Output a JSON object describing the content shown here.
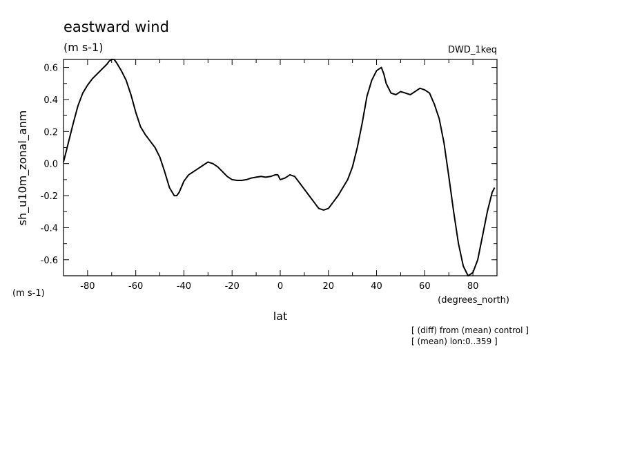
{
  "chart_data": {
    "type": "line",
    "title": "eastward wind",
    "subtitle": "(m s-1)",
    "dataset_label": "DWD_1keq",
    "ylabel": "sh_u10m_zonal_anm",
    "yunits": "(m s-1)",
    "xlabel": "lat",
    "xunits": "(degrees_north)",
    "xlim": [
      -90,
      90
    ],
    "ylim": [
      -0.7,
      0.65
    ],
    "xticks": [
      -80,
      -60,
      -40,
      -20,
      0,
      20,
      40,
      60,
      80
    ],
    "xtick_labels": [
      "-80",
      "-60",
      "-40",
      "-20",
      "0",
      "20",
      "40",
      "60",
      "80"
    ],
    "yticks": [
      -0.6,
      -0.4,
      -0.2,
      0.0,
      0.2,
      0.4,
      0.6
    ],
    "ytick_labels": [
      "-0.6",
      "-0.4",
      "-0.2",
      "0.0",
      "0.2",
      "0.4",
      "0.6"
    ],
    "grid": false,
    "notes": [
      "[ (diff) from (mean) control ]",
      "[ (mean) lon:0..359 ]"
    ],
    "series": [
      {
        "color": "#000000",
        "x": [
          -90,
          -88,
          -86,
          -84,
          -82,
          -80,
          -78,
          -76,
          -74,
          -72,
          -71,
          -70,
          -69,
          -68,
          -66,
          -64,
          -62,
          -60,
          -58,
          -56,
          -54,
          -52,
          -50,
          -48,
          -46,
          -44,
          -43,
          -42,
          -40,
          -38,
          -36,
          -34,
          -32,
          -30,
          -28,
          -26,
          -24,
          -22,
          -20,
          -18,
          -16,
          -14,
          -12,
          -10,
          -8,
          -6,
          -4,
          -2,
          -1,
          0,
          2,
          4,
          6,
          8,
          10,
          12,
          14,
          16,
          18,
          20,
          22,
          24,
          26,
          28,
          30,
          32,
          34,
          36,
          38,
          40,
          42,
          43,
          44,
          46,
          48,
          50,
          52,
          54,
          56,
          58,
          60,
          62,
          64,
          66,
          68,
          70,
          72,
          74,
          76,
          78,
          80,
          82,
          84,
          86,
          88,
          89
        ],
        "y": [
          0.01,
          0.13,
          0.25,
          0.36,
          0.44,
          0.49,
          0.53,
          0.56,
          0.59,
          0.62,
          0.64,
          0.655,
          0.65,
          0.63,
          0.58,
          0.52,
          0.43,
          0.32,
          0.23,
          0.18,
          0.14,
          0.1,
          0.04,
          -0.05,
          -0.15,
          -0.2,
          -0.2,
          -0.18,
          -0.11,
          -0.07,
          -0.05,
          -0.03,
          -0.01,
          0.01,
          0.0,
          -0.02,
          -0.05,
          -0.08,
          -0.1,
          -0.105,
          -0.105,
          -0.1,
          -0.09,
          -0.085,
          -0.08,
          -0.085,
          -0.08,
          -0.07,
          -0.07,
          -0.1,
          -0.09,
          -0.07,
          -0.08,
          -0.12,
          -0.16,
          -0.2,
          -0.24,
          -0.28,
          -0.29,
          -0.28,
          -0.24,
          -0.2,
          -0.15,
          -0.1,
          -0.02,
          0.1,
          0.25,
          0.42,
          0.52,
          0.58,
          0.6,
          0.56,
          0.5,
          0.44,
          0.43,
          0.45,
          0.44,
          0.43,
          0.45,
          0.47,
          0.46,
          0.44,
          0.37,
          0.28,
          0.13,
          -0.08,
          -0.3,
          -0.5,
          -0.64,
          -0.7,
          -0.68,
          -0.6,
          -0.45,
          -0.3,
          -0.18,
          -0.15
        ]
      }
    ]
  }
}
